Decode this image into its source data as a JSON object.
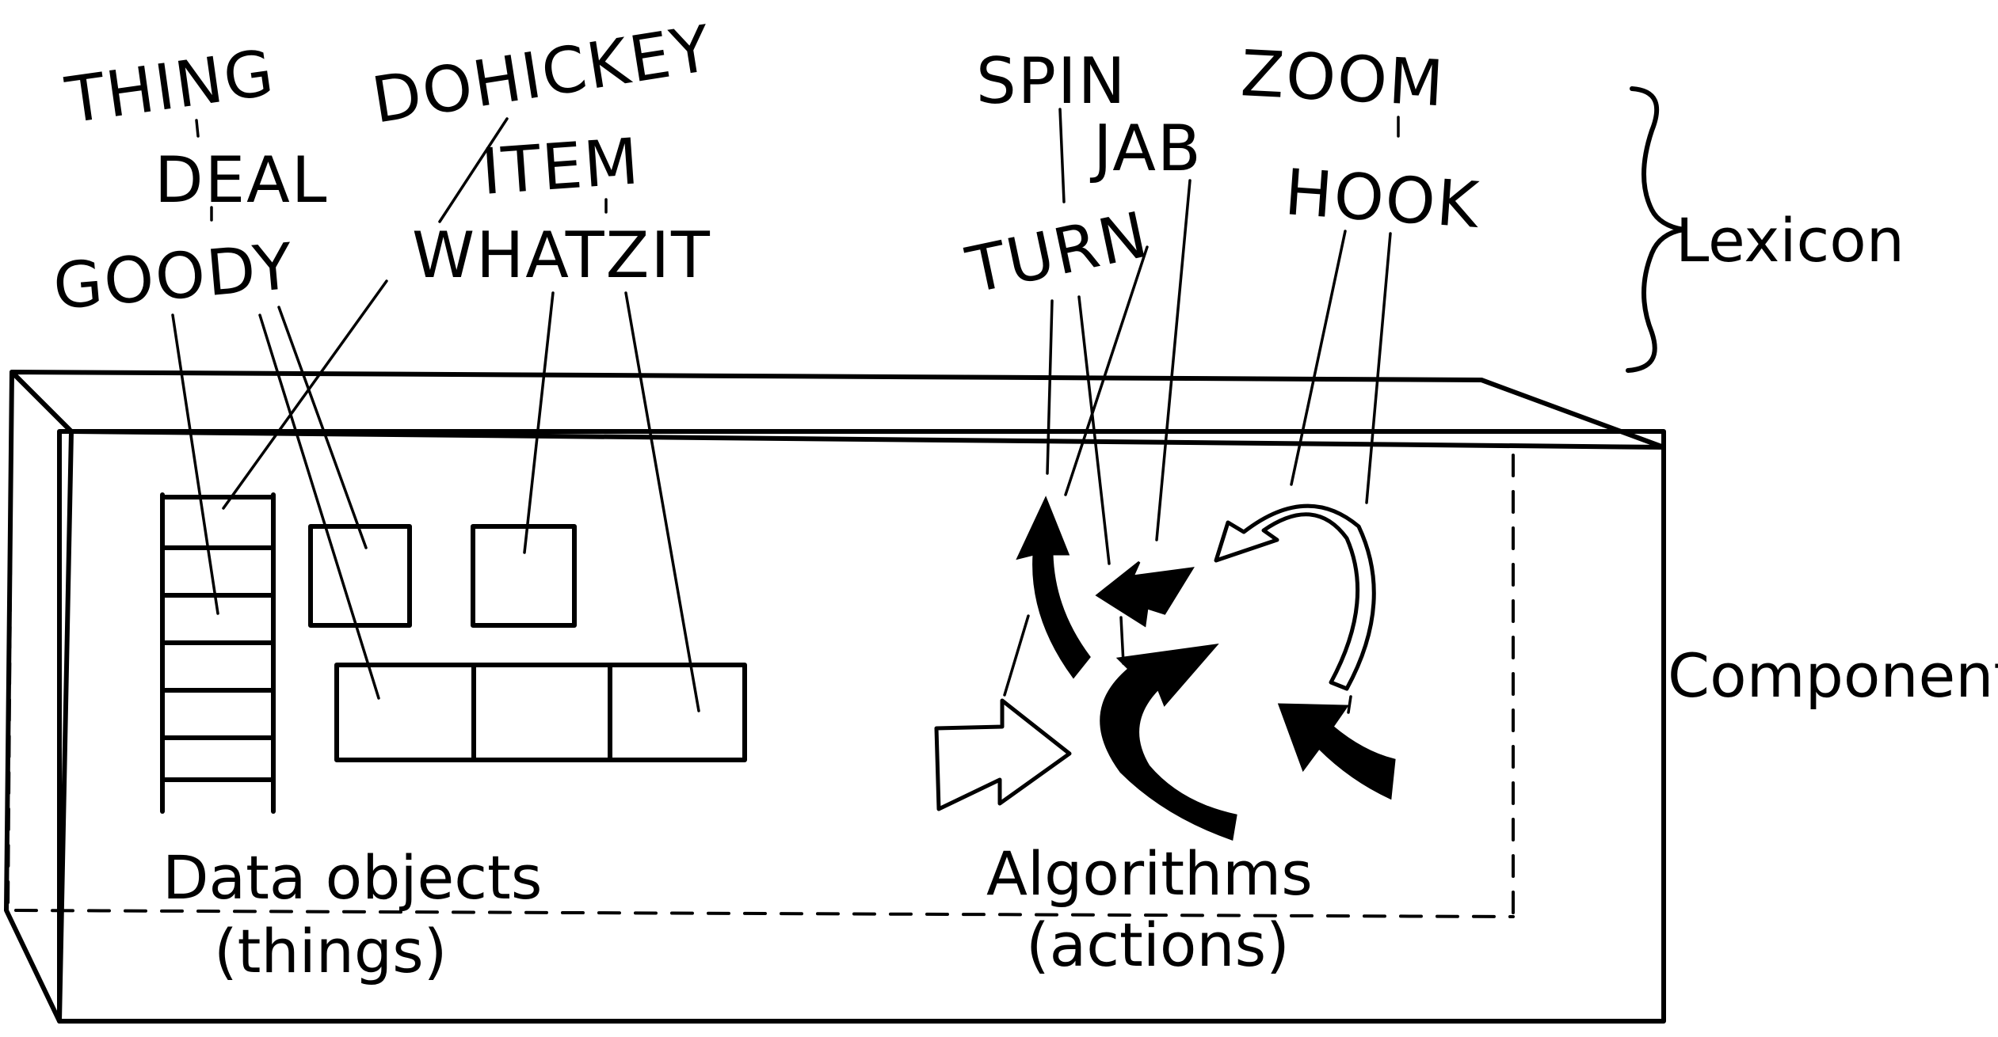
{
  "lexicon": {
    "label": "Lexicon",
    "thing_words": [
      "THING",
      "DOHICKEY",
      "DEAL",
      "ITEM",
      "GOODY",
      "WHATZIT"
    ],
    "action_words": [
      "SPIN",
      "ZOOM",
      "JAB",
      "HOOK",
      "TURN"
    ]
  },
  "component": {
    "label": "Component",
    "data_objects": {
      "title": "Data objects",
      "subtitle": "(things)"
    },
    "algorithms": {
      "title": "Algorithms",
      "subtitle": "(actions)"
    }
  },
  "colors": {
    "ink": "#000000",
    "paper": "#ffffff"
  },
  "icons": [
    "curly-brace-icon",
    "curved-arrow-icon",
    "block-arrow-icon",
    "open-arrow-icon"
  ]
}
